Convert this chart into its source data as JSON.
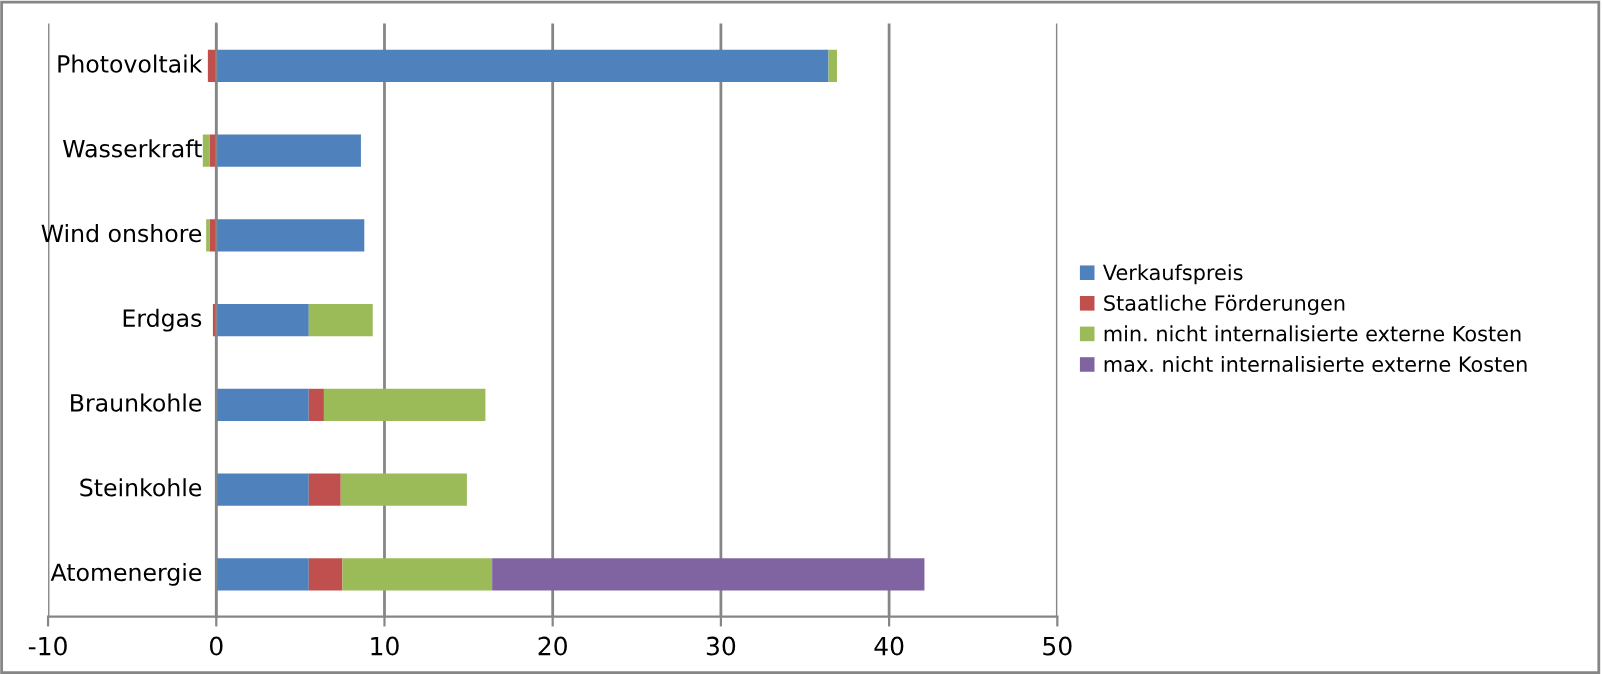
{
  "chart_data": {
    "type": "bar",
    "orientation": "horizontal",
    "stacked": true,
    "categories": [
      "Photovoltaik",
      "Wasserkraft",
      "Wind onshore",
      "Erdgas",
      "Braunkohle",
      "Steinkohle",
      "Atomenergie"
    ],
    "series": [
      {
        "name": "Verkaufspreis",
        "color": "#4f81bd",
        "values": [
          36.4,
          8.6,
          8.8,
          5.5,
          5.5,
          5.5,
          5.5
        ]
      },
      {
        "name": "Staatliche Förderungen",
        "color": "#c0504d",
        "values": [
          -0.5,
          -0.4,
          -0.4,
          -0.2,
          0.9,
          1.9,
          2.0
        ]
      },
      {
        "name": "min. nicht internalisierte externe Kosten",
        "color": "#9bbb59",
        "values": [
          0.5,
          -0.4,
          -0.2,
          3.8,
          9.6,
          7.5,
          8.9
        ]
      },
      {
        "name": "max. nicht internalisierte externe Kosten",
        "color": "#8064a2",
        "values": [
          null,
          null,
          null,
          null,
          null,
          null,
          25.7
        ]
      }
    ],
    "xlim": [
      -10,
      50
    ],
    "xticks": [
      -10,
      0,
      10,
      20,
      30,
      40,
      50
    ],
    "grid": "x",
    "legend": "right"
  }
}
